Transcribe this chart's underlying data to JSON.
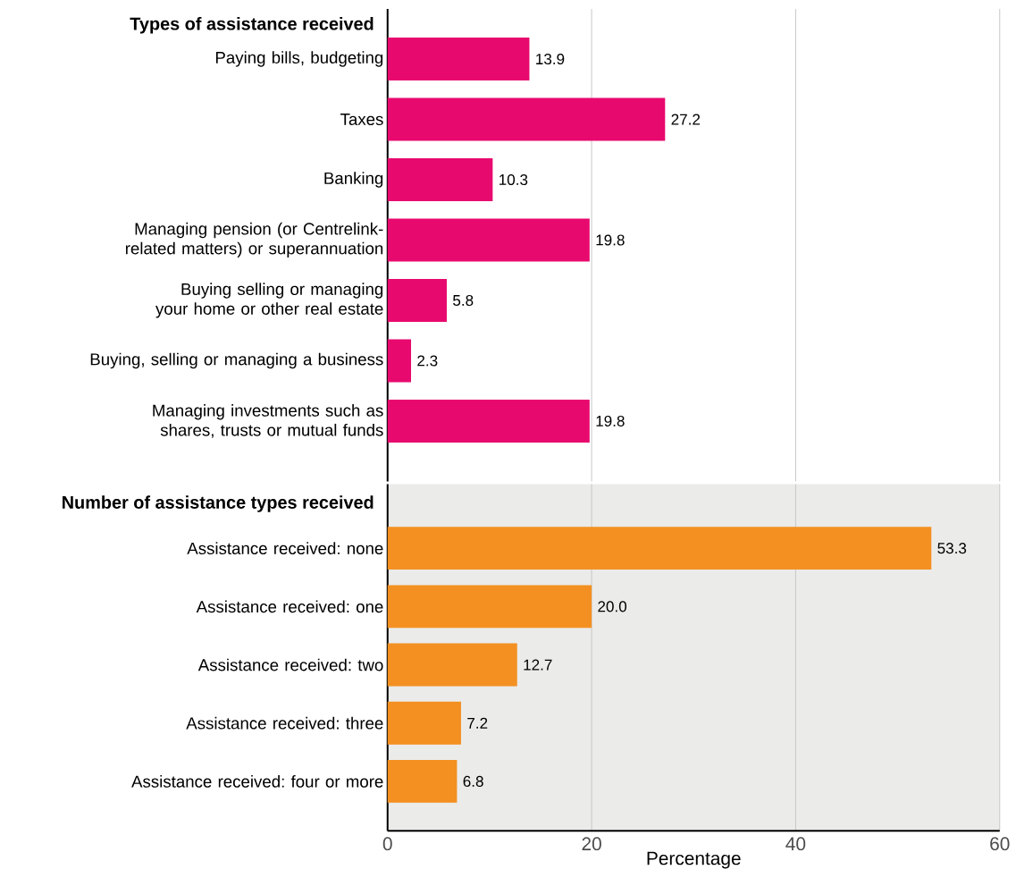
{
  "chart_data": [
    {
      "type": "bar",
      "orientation": "horizontal",
      "title": "Types of assistance received",
      "categories": [
        "Paying bills, budgeting",
        "Taxes",
        "Banking",
        "Managing pension (or Centrelink-related matters) or superannuation",
        "Buying selling or managing your home or other real estate",
        "Buying, selling or managing a business",
        "Managing investments such as shares, trusts or mutual funds"
      ],
      "values": [
        13.9,
        27.2,
        10.3,
        19.8,
        5.8,
        2.3,
        19.8
      ],
      "value_labels": [
        "13.9",
        "27.2",
        "10.3",
        "19.8",
        "5.8",
        "2.3",
        "19.8"
      ],
      "color": "#e8096e",
      "xlim": [
        0,
        60
      ],
      "xticks": [
        0,
        20,
        40,
        60
      ],
      "grid": "x",
      "tick_labels": "y"
    },
    {
      "type": "bar",
      "orientation": "horizontal",
      "title": "Number of assistance types received",
      "xlabel": "Percentage",
      "categories": [
        "Assistance received: none",
        "Assistance received: one",
        "Assistance received: two",
        "Assistance received: three",
        "Assistance received: four or more"
      ],
      "values": [
        53.3,
        20.0,
        12.7,
        7.2,
        6.8
      ],
      "value_labels": [
        "53.3",
        "20.0",
        "12.7",
        "7.2",
        "6.8"
      ],
      "color": "#f39021",
      "xlim": [
        0,
        60
      ],
      "xticks": [
        0,
        20,
        40,
        60
      ],
      "grid": "x"
    }
  ]
}
